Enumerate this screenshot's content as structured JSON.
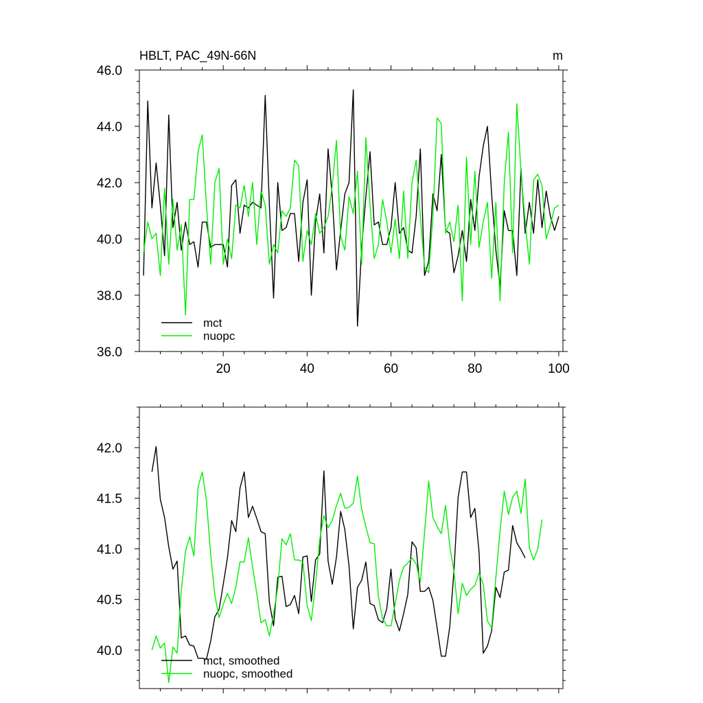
{
  "chart_data": [
    {
      "type": "line",
      "title": "HBLT, PAC_49N-66N",
      "units_label": "m",
      "xlim": [
        0,
        101
      ],
      "ylim": [
        36.0,
        46.0
      ],
      "xticks": [
        20,
        40,
        60,
        80,
        100
      ],
      "xtick_labels": [
        "20",
        "40",
        "60",
        "80",
        "100"
      ],
      "yticks": [
        36.0,
        38.0,
        40.0,
        42.0,
        44.0,
        46.0
      ],
      "ytick_labels": [
        "36.0",
        "38.0",
        "40.0",
        "42.0",
        "44.0",
        "46.0"
      ],
      "legend_position": "bottom-left",
      "series": [
        {
          "name": "mct",
          "color": "#000000",
          "x_start": 1,
          "values": [
            38.7,
            44.9,
            41.1,
            42.7,
            41.2,
            39.4,
            44.4,
            40.4,
            41.3,
            39.6,
            40.6,
            39.8,
            39.9,
            39.0,
            40.6,
            40.6,
            39.7,
            39.8,
            39.8,
            39.8,
            39.0,
            41.9,
            42.1,
            40.2,
            41.2,
            41.1,
            41.3,
            41.2,
            41.1,
            45.1,
            41.2,
            37.9,
            42.0,
            40.3,
            40.4,
            40.9,
            40.9,
            39.2,
            41.3,
            42.1,
            38.0,
            40.6,
            41.6,
            39.5,
            43.2,
            41.5,
            38.9,
            40.3,
            41.6,
            42.0,
            45.3,
            36.9,
            39.7,
            41.5,
            43.1,
            40.5,
            40.6,
            39.8,
            39.8,
            40.4,
            42.0,
            40.2,
            40.4,
            39.6,
            39.5,
            40.8,
            43.2,
            38.7,
            39.2,
            41.6,
            41.0,
            43.0,
            40.3,
            40.2,
            38.8,
            39.4,
            40.3,
            39.2,
            41.4,
            40.3,
            42.2,
            43.3,
            44.0,
            41.6,
            39.6,
            38.3,
            41.0,
            40.3,
            40.3,
            38.7,
            42.5,
            40.2,
            41.3,
            40.2,
            42.1,
            40.4,
            41.7,
            40.8,
            40.3,
            40.8
          ]
        },
        {
          "name": "nuopc",
          "color": "#00ee00",
          "x_start": 1,
          "values": [
            39.5,
            40.6,
            40.0,
            40.2,
            38.7,
            41.8,
            39.1,
            41.4,
            39.6,
            40.5,
            37.3,
            41.4,
            41.4,
            43.1,
            43.7,
            41.2,
            39.1,
            42.0,
            42.5,
            39.1,
            40.0,
            39.3,
            41.2,
            41.1,
            41.9,
            40.8,
            42.0,
            39.8,
            41.7,
            41.2,
            39.1,
            39.8,
            39.5,
            41.0,
            40.8,
            41.1,
            42.8,
            42.6,
            39.2,
            40.3,
            39.8,
            40.9,
            40.2,
            40.4,
            40.8,
            41.9,
            43.5,
            40.1,
            39.6,
            41.5,
            40.9,
            42.4,
            39.1,
            43.6,
            41.2,
            39.3,
            39.8,
            41.4,
            40.6,
            39.5,
            40.7,
            39.3,
            41.7,
            39.3,
            42.0,
            42.8,
            40.8,
            39.0,
            38.8,
            40.8,
            44.3,
            44.1,
            40.2,
            40.6,
            39.9,
            41.2,
            37.8,
            42.9,
            39.8,
            42.4,
            39.7,
            40.6,
            41.3,
            38.6,
            41.3,
            37.8,
            42.0,
            43.8,
            39.5,
            44.8,
            42.4,
            40.6,
            39.1,
            42.1,
            42.3,
            41.9,
            40.0,
            40.5,
            41.1,
            41.2
          ]
        }
      ]
    },
    {
      "type": "line",
      "title": "",
      "xlim": [
        0,
        101
      ],
      "ylim": [
        39.62,
        42.4
      ],
      "xticks": [
        20,
        40,
        60,
        80,
        100
      ],
      "xtick_labels": [],
      "yticks": [
        40.0,
        40.5,
        41.0,
        41.5,
        42.0
      ],
      "ytick_labels": [
        "40.0",
        "40.5",
        "41.0",
        "41.5",
        "42.0"
      ],
      "legend_position": "bottom-left",
      "series": [
        {
          "name": "mct, smoothed",
          "color": "#000000",
          "x_start": 3,
          "values": [
            41.76,
            42.01,
            41.49,
            41.31,
            41.02,
            40.8,
            40.88,
            40.12,
            40.14,
            40.05,
            40.04,
            39.92,
            39.92,
            39.91,
            40.09,
            40.33,
            40.4,
            40.65,
            40.91,
            41.28,
            41.17,
            41.6,
            41.76,
            41.31,
            41.42,
            41.3,
            41.17,
            41.15,
            40.47,
            40.24,
            40.72,
            40.73,
            40.43,
            40.45,
            40.54,
            40.36,
            40.92,
            40.93,
            40.48,
            40.89,
            40.95,
            41.77,
            40.88,
            40.65,
            40.92,
            41.37,
            41.19,
            40.83,
            40.21,
            40.62,
            40.69,
            40.87,
            40.46,
            40.44,
            40.3,
            40.27,
            40.41,
            40.8,
            40.31,
            40.19,
            40.36,
            40.55,
            41.07,
            41.01,
            40.58,
            40.58,
            40.62,
            40.49,
            40.22,
            39.94,
            39.94,
            40.23,
            40.78,
            41.51,
            41.76,
            41.76,
            41.31,
            41.4,
            40.97,
            39.97,
            40.04,
            40.19,
            40.62,
            40.52,
            40.77,
            40.79,
            41.23,
            41.06,
            40.99,
            40.91
          ]
        },
        {
          "name": "nuopc, smoothed",
          "color": "#00ee00",
          "x_start": 3,
          "values": [
            40.0,
            40.14,
            40.02,
            40.07,
            39.68,
            40.03,
            39.97,
            40.59,
            40.98,
            41.12,
            40.93,
            41.61,
            41.76,
            41.48,
            40.94,
            40.54,
            40.32,
            40.45,
            40.56,
            40.46,
            40.62,
            40.87,
            40.87,
            41.11,
            40.82,
            40.56,
            40.27,
            40.3,
            40.14,
            40.36,
            40.62,
            41.1,
            41.04,
            41.15,
            40.89,
            40.89,
            40.87,
            40.44,
            40.29,
            40.65,
            41.09,
            41.33,
            41.21,
            41.28,
            41.43,
            41.55,
            41.4,
            41.41,
            41.45,
            41.72,
            41.39,
            41.22,
            41.06,
            41.05,
            40.53,
            40.31,
            40.24,
            40.24,
            40.46,
            40.69,
            40.82,
            40.86,
            40.91,
            40.85,
            40.67,
            41.16,
            41.67,
            41.31,
            41.22,
            41.15,
            41.43,
            41.03,
            40.78,
            40.36,
            40.66,
            40.54,
            40.6,
            40.64,
            40.76,
            40.65,
            40.29,
            40.22,
            40.72,
            41.18,
            41.57,
            41.34,
            41.51,
            41.57,
            41.35,
            41.69,
            41.01,
            40.89,
            41.0,
            41.29
          ]
        }
      ]
    }
  ]
}
